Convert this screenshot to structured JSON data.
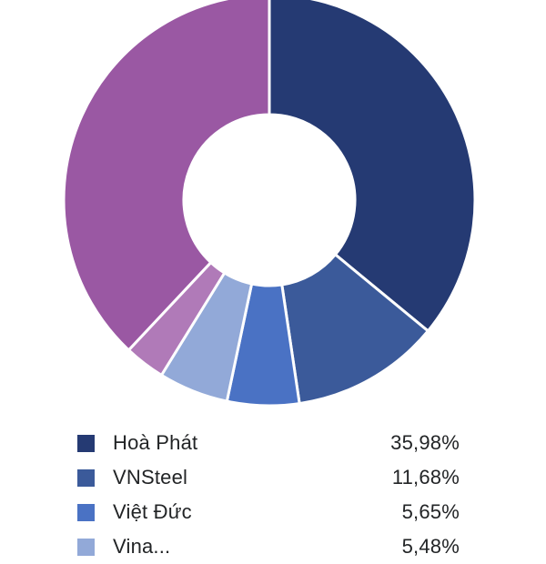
{
  "chart_data": {
    "type": "pie",
    "donut": true,
    "slices": [
      {
        "label": "Hoà Phát",
        "value": 35.98,
        "value_text": "35,98%",
        "color": "#253a73"
      },
      {
        "label": "VNSteel",
        "value": 11.68,
        "value_text": "11,68%",
        "color": "#3b5a9a"
      },
      {
        "label": "Việt Đức",
        "value": 5.65,
        "value_text": "5,65%",
        "color": "#4a72c4"
      },
      {
        "label": "Vina...",
        "value": 5.48,
        "value_text": "5,48%",
        "color": "#92a9d8"
      },
      {
        "label": "",
        "value": 3.2,
        "value_text": "",
        "color": "#b07ab8"
      },
      {
        "label": "",
        "value": 38.01,
        "value_text": "",
        "color": "#9a58a3"
      }
    ],
    "legend_placement": "bottom",
    "legend_visible_count": 4
  }
}
